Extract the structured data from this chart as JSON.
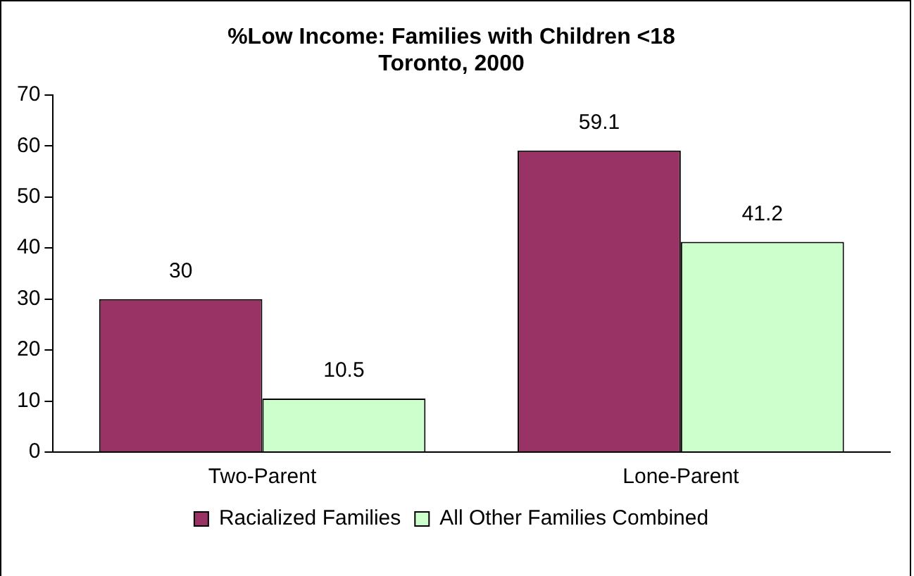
{
  "chart_data": {
    "type": "bar",
    "title": "%Low Income: Families with Children <18\nToronto, 2000",
    "categories": [
      "Two-Parent",
      "Lone-Parent"
    ],
    "series": [
      {
        "name": "Racialized Families",
        "color": "#993366",
        "values": [
          30,
          59.1
        ]
      },
      {
        "name": "All Other Families Combined",
        "color": "#ccffcc",
        "values": [
          10.5,
          41.2
        ]
      }
    ],
    "ylim": [
      0,
      70
    ],
    "yticks": [
      0,
      10,
      20,
      30,
      40,
      50,
      60,
      70
    ],
    "grid": false,
    "legend": "bottom",
    "data_labels": true
  }
}
